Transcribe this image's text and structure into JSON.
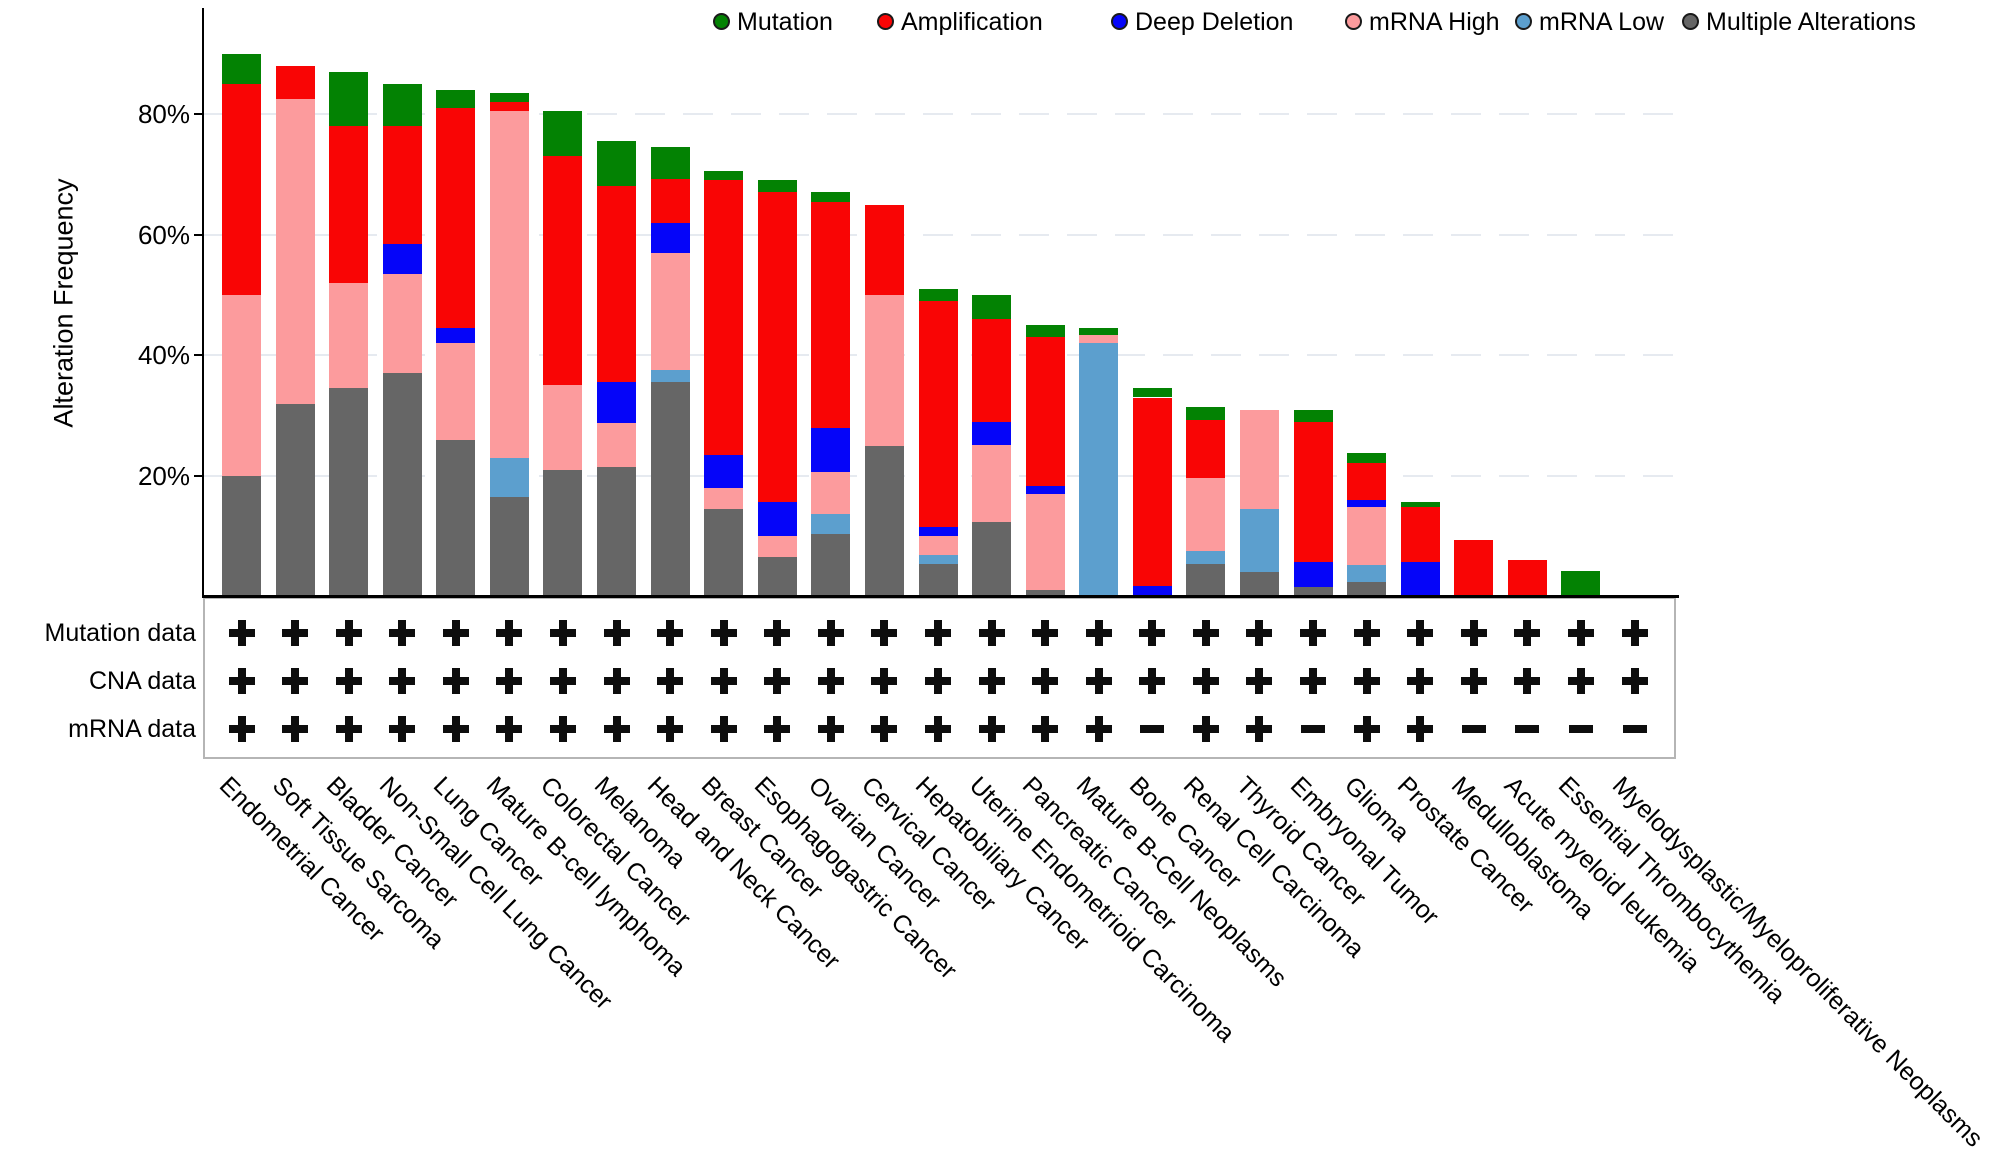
{
  "chart_data": {
    "type": "stacked_bar",
    "title": "",
    "ylabel": "Alteration Frequency",
    "ylim": [
      0,
      93
    ],
    "grid": "horizontal dashed at ticks",
    "legend_position": "top",
    "yticks": [
      {
        "value": 20,
        "label": "20%"
      },
      {
        "value": 40,
        "label": "40%"
      },
      {
        "value": 60,
        "label": "60%"
      },
      {
        "value": 80,
        "label": "80%"
      }
    ],
    "legend": [
      {
        "key": "mutation",
        "label": "Mutation",
        "color": "#038203"
      },
      {
        "key": "amplification",
        "label": "Amplification",
        "color": "#f90505"
      },
      {
        "key": "deep_deletion",
        "label": "Deep Deletion",
        "color": "#0505f9"
      },
      {
        "key": "mrna_high",
        "label": "mRNA High",
        "color": "#fc9b9d"
      },
      {
        "key": "mrna_low",
        "label": "mRNA Low",
        "color": "#5c9fce"
      },
      {
        "key": "multiple",
        "label": "Multiple Alterations",
        "color": "#666666"
      }
    ],
    "track_rows": [
      {
        "key": "mutation",
        "label": "Mutation data"
      },
      {
        "key": "cna",
        "label": "CNA data"
      },
      {
        "key": "mrna",
        "label": "mRNA data"
      }
    ],
    "bars": [
      {
        "label": "Endometrial Cancer",
        "total": 90,
        "track": {
          "mutation": "+",
          "cna": "+",
          "mrna": "+"
        },
        "segments": [
          {
            "type": "multiple",
            "value": 20
          },
          {
            "type": "mrna_high",
            "value": 30
          },
          {
            "type": "amplification",
            "value": 35
          },
          {
            "type": "mutation",
            "value": 5
          }
        ]
      },
      {
        "label": "Soft Tissue Sarcoma",
        "total": 88,
        "track": {
          "mutation": "+",
          "cna": "+",
          "mrna": "+"
        },
        "segments": [
          {
            "type": "multiple",
            "value": 32
          },
          {
            "type": "mrna_high",
            "value": 50.5
          },
          {
            "type": "amplification",
            "value": 5.5
          }
        ]
      },
      {
        "label": "Bladder Cancer",
        "total": 87,
        "track": {
          "mutation": "+",
          "cna": "+",
          "mrna": "+"
        },
        "segments": [
          {
            "type": "multiple",
            "value": 34.5
          },
          {
            "type": "mrna_high",
            "value": 17.5
          },
          {
            "type": "amplification",
            "value": 26
          },
          {
            "type": "mutation",
            "value": 9
          }
        ]
      },
      {
        "label": "Non-Small Cell Lung Cancer",
        "total": 85,
        "track": {
          "mutation": "+",
          "cna": "+",
          "mrna": "+"
        },
        "segments": [
          {
            "type": "multiple",
            "value": 37
          },
          {
            "type": "mrna_high",
            "value": 16.5
          },
          {
            "type": "deep_deletion",
            "value": 5
          },
          {
            "type": "amplification",
            "value": 19.5
          },
          {
            "type": "mutation",
            "value": 7
          }
        ]
      },
      {
        "label": "Lung Cancer",
        "total": 84,
        "track": {
          "mutation": "+",
          "cna": "+",
          "mrna": "+"
        },
        "segments": [
          {
            "type": "multiple",
            "value": 26
          },
          {
            "type": "mrna_high",
            "value": 16
          },
          {
            "type": "deep_deletion",
            "value": 2.5
          },
          {
            "type": "amplification",
            "value": 36.5
          },
          {
            "type": "mutation",
            "value": 3
          }
        ]
      },
      {
        "label": "Mature B-cell lymphoma",
        "total": 83.5,
        "track": {
          "mutation": "+",
          "cna": "+",
          "mrna": "+"
        },
        "segments": [
          {
            "type": "multiple",
            "value": 16.5
          },
          {
            "type": "mrna_low",
            "value": 6.5
          },
          {
            "type": "mrna_high",
            "value": 57.5
          },
          {
            "type": "amplification",
            "value": 1.5
          },
          {
            "type": "mutation",
            "value": 1.5
          }
        ]
      },
      {
        "label": "Colorectal Cancer",
        "total": 80.5,
        "track": {
          "mutation": "+",
          "cna": "+",
          "mrna": "+"
        },
        "segments": [
          {
            "type": "multiple",
            "value": 21
          },
          {
            "type": "mrna_high",
            "value": 14
          },
          {
            "type": "amplification",
            "value": 38
          },
          {
            "type": "mutation",
            "value": 7.5
          }
        ]
      },
      {
        "label": "Melanoma",
        "total": 75.5,
        "track": {
          "mutation": "+",
          "cna": "+",
          "mrna": "+"
        },
        "segments": [
          {
            "type": "multiple",
            "value": 21.5
          },
          {
            "type": "mrna_high",
            "value": 7.2
          },
          {
            "type": "deep_deletion",
            "value": 6.8
          },
          {
            "type": "amplification",
            "value": 32.5
          },
          {
            "type": "mutation",
            "value": 7.5
          }
        ]
      },
      {
        "label": "Head and Neck Cancer",
        "total": 74.5,
        "track": {
          "mutation": "+",
          "cna": "+",
          "mrna": "+"
        },
        "segments": [
          {
            "type": "multiple",
            "value": 35.5
          },
          {
            "type": "mrna_low",
            "value": 2
          },
          {
            "type": "mrna_high",
            "value": 19.5
          },
          {
            "type": "deep_deletion",
            "value": 5
          },
          {
            "type": "amplification",
            "value": 7.3
          },
          {
            "type": "mutation",
            "value": 5.2
          }
        ]
      },
      {
        "label": "Breast Cancer",
        "total": 70.5,
        "track": {
          "mutation": "+",
          "cna": "+",
          "mrna": "+"
        },
        "segments": [
          {
            "type": "multiple",
            "value": 14.5
          },
          {
            "type": "mrna_high",
            "value": 3.5
          },
          {
            "type": "deep_deletion",
            "value": 5.5
          },
          {
            "type": "amplification",
            "value": 45.5
          },
          {
            "type": "mutation",
            "value": 1.5
          }
        ]
      },
      {
        "label": "Esophagogastric Cancer",
        "total": 69,
        "track": {
          "mutation": "+",
          "cna": "+",
          "mrna": "+"
        },
        "segments": [
          {
            "type": "multiple",
            "value": 6.6
          },
          {
            "type": "mrna_high",
            "value": 3.4
          },
          {
            "type": "deep_deletion",
            "value": 5.6
          },
          {
            "type": "amplification",
            "value": 51.4
          },
          {
            "type": "mutation",
            "value": 2
          }
        ]
      },
      {
        "label": "Ovarian Cancer",
        "total": 67,
        "track": {
          "mutation": "+",
          "cna": "+",
          "mrna": "+"
        },
        "segments": [
          {
            "type": "multiple",
            "value": 10.4
          },
          {
            "type": "mrna_low",
            "value": 3.3
          },
          {
            "type": "mrna_high",
            "value": 6.9
          },
          {
            "type": "deep_deletion",
            "value": 7.4
          },
          {
            "type": "amplification",
            "value": 37.5
          },
          {
            "type": "mutation",
            "value": 1.5
          }
        ]
      },
      {
        "label": "Cervical Cancer",
        "total": 65,
        "track": {
          "mutation": "+",
          "cna": "+",
          "mrna": "+"
        },
        "segments": [
          {
            "type": "multiple",
            "value": 25
          },
          {
            "type": "mrna_high",
            "value": 25
          },
          {
            "type": "amplification",
            "value": 15
          }
        ]
      },
      {
        "label": "Hepatobiliary Cancer",
        "total": 51,
        "track": {
          "mutation": "+",
          "cna": "+",
          "mrna": "+"
        },
        "segments": [
          {
            "type": "multiple",
            "value": 5.4
          },
          {
            "type": "mrna_low",
            "value": 1.4
          },
          {
            "type": "mrna_high",
            "value": 3.2
          },
          {
            "type": "deep_deletion",
            "value": 1.5
          },
          {
            "type": "amplification",
            "value": 37.5
          },
          {
            "type": "mutation",
            "value": 2
          }
        ]
      },
      {
        "label": "Uterine Endometrioid Carcinoma",
        "total": 50,
        "track": {
          "mutation": "+",
          "cna": "+",
          "mrna": "+"
        },
        "segments": [
          {
            "type": "multiple",
            "value": 12.4
          },
          {
            "type": "mrna_high",
            "value": 12.8
          },
          {
            "type": "deep_deletion",
            "value": 3.8
          },
          {
            "type": "amplification",
            "value": 17
          },
          {
            "type": "mutation",
            "value": 4
          }
        ]
      },
      {
        "label": "Pancreatic Cancer",
        "total": 45,
        "track": {
          "mutation": "+",
          "cna": "+",
          "mrna": "+"
        },
        "segments": [
          {
            "type": "multiple",
            "value": 1
          },
          {
            "type": "mrna_high",
            "value": 16
          },
          {
            "type": "deep_deletion",
            "value": 1.3
          },
          {
            "type": "amplification",
            "value": 24.7
          },
          {
            "type": "mutation",
            "value": 2
          }
        ]
      },
      {
        "label": "Mature B-Cell Neoplasms",
        "total": 44.5,
        "track": {
          "mutation": "+",
          "cna": "+",
          "mrna": "+"
        },
        "segments": [
          {
            "type": "mrna_low",
            "value": 42
          },
          {
            "type": "mrna_high",
            "value": 1.3
          },
          {
            "type": "mutation",
            "value": 1.2
          }
        ]
      },
      {
        "label": "Bone Cancer",
        "total": 34.5,
        "track": {
          "mutation": "+",
          "cna": "+",
          "mrna": "-"
        },
        "segments": [
          {
            "type": "deep_deletion",
            "value": 1.7
          },
          {
            "type": "amplification",
            "value": 31.3
          },
          {
            "type": "mutation",
            "value": 1.5
          }
        ]
      },
      {
        "label": "Renal Cell Carcinoma",
        "total": 31.5,
        "track": {
          "mutation": "+",
          "cna": "+",
          "mrna": "+"
        },
        "segments": [
          {
            "type": "multiple",
            "value": 5.4
          },
          {
            "type": "mrna_low",
            "value": 2.2
          },
          {
            "type": "mrna_high",
            "value": 12
          },
          {
            "type": "amplification",
            "value": 9.6
          },
          {
            "type": "mutation",
            "value": 2.3
          }
        ]
      },
      {
        "label": "Thyroid Cancer",
        "total": 31,
        "track": {
          "mutation": "+",
          "cna": "+",
          "mrna": "+"
        },
        "segments": [
          {
            "type": "multiple",
            "value": 4
          },
          {
            "type": "mrna_low",
            "value": 10.5
          },
          {
            "type": "mrna_high",
            "value": 16.5
          }
        ]
      },
      {
        "label": "Embryonal Tumor",
        "total": 31,
        "track": {
          "mutation": "+",
          "cna": "+",
          "mrna": "-"
        },
        "segments": [
          {
            "type": "multiple",
            "value": 1.6
          },
          {
            "type": "deep_deletion",
            "value": 4.2
          },
          {
            "type": "amplification",
            "value": 23.2
          },
          {
            "type": "mutation",
            "value": 2
          }
        ]
      },
      {
        "label": "Glioma",
        "total": 23.8,
        "track": {
          "mutation": "+",
          "cna": "+",
          "mrna": "+"
        },
        "segments": [
          {
            "type": "multiple",
            "value": 2.4
          },
          {
            "type": "mrna_low",
            "value": 2.9
          },
          {
            "type": "mrna_high",
            "value": 9.6
          },
          {
            "type": "deep_deletion",
            "value": 1.1
          },
          {
            "type": "amplification",
            "value": 6.2
          },
          {
            "type": "mutation",
            "value": 1.6
          }
        ]
      },
      {
        "label": "Prostate Cancer",
        "total": 15.6,
        "track": {
          "mutation": "+",
          "cna": "+",
          "mrna": "+"
        },
        "segments": [
          {
            "type": "deep_deletion",
            "value": 5.7
          },
          {
            "type": "amplification",
            "value": 9.1
          },
          {
            "type": "mutation",
            "value": 0.8
          }
        ]
      },
      {
        "label": "Medulloblastoma",
        "total": 9.4,
        "track": {
          "mutation": "+",
          "cna": "+",
          "mrna": "-"
        },
        "segments": [
          {
            "type": "amplification",
            "value": 9.4
          }
        ]
      },
      {
        "label": "Acute myeloid leukemia",
        "total": 6.1,
        "track": {
          "mutation": "+",
          "cna": "+",
          "mrna": "-"
        },
        "segments": [
          {
            "type": "amplification",
            "value": 6.1
          }
        ]
      },
      {
        "label": "Essential Thrombocythemia",
        "total": 4.2,
        "track": {
          "mutation": "+",
          "cna": "+",
          "mrna": "-"
        },
        "segments": [
          {
            "type": "mutation",
            "value": 4.2
          }
        ]
      },
      {
        "label": "Myelodysplastic/Myeloproliferative Neoplasms",
        "total": 0.2,
        "track": {
          "mutation": "+",
          "cna": "+",
          "mrna": "-"
        },
        "segments": [
          {
            "type": "mutation",
            "value": 0.2
          }
        ]
      }
    ]
  }
}
